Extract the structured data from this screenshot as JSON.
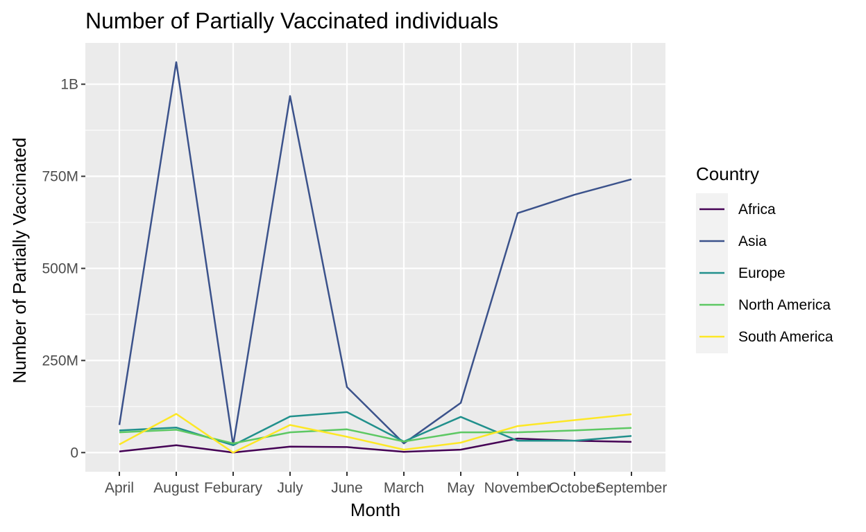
{
  "chart_data": {
    "type": "line",
    "title": "Number of Partially Vaccinated individuals",
    "xlabel": "Month",
    "ylabel": "Number of Partially Vaccinated",
    "categories": [
      "April",
      "August",
      "Feburary",
      "July",
      "June",
      "March",
      "May",
      "November",
      "October",
      "September"
    ],
    "y_ticks": [
      {
        "value": 0,
        "label": "0"
      },
      {
        "value": 250000000,
        "label": "250M"
      },
      {
        "value": 500000000,
        "label": "500M"
      },
      {
        "value": 750000000,
        "label": "750M"
      },
      {
        "value": 1000000000,
        "label": "1B"
      }
    ],
    "ylim": [
      -52000000,
      1112000000
    ],
    "grid": true,
    "legend": {
      "title": "Country",
      "position": "right"
    },
    "series": [
      {
        "name": "Africa",
        "color": "#440154",
        "values": [
          3000000,
          20000000,
          0,
          16000000,
          15000000,
          2000000,
          8000000,
          38000000,
          32000000,
          29000000
        ]
      },
      {
        "name": "Asia",
        "color": "#3b528b",
        "values": [
          75000000,
          1060000000,
          20000000,
          968000000,
          178000000,
          25000000,
          135000000,
          650000000,
          700000000,
          742000000
        ]
      },
      {
        "name": "Europe",
        "color": "#21908c",
        "values": [
          60000000,
          68000000,
          20000000,
          98000000,
          110000000,
          30000000,
          97000000,
          32000000,
          32000000,
          45000000
        ]
      },
      {
        "name": "North America",
        "color": "#5dc863",
        "values": [
          55000000,
          62000000,
          25000000,
          55000000,
          63000000,
          30000000,
          55000000,
          55000000,
          60000000,
          67000000
        ]
      },
      {
        "name": "South America",
        "color": "#fde725",
        "values": [
          22000000,
          105000000,
          0,
          75000000,
          43000000,
          8000000,
          27000000,
          72000000,
          88000000,
          104000000
        ]
      }
    ]
  }
}
